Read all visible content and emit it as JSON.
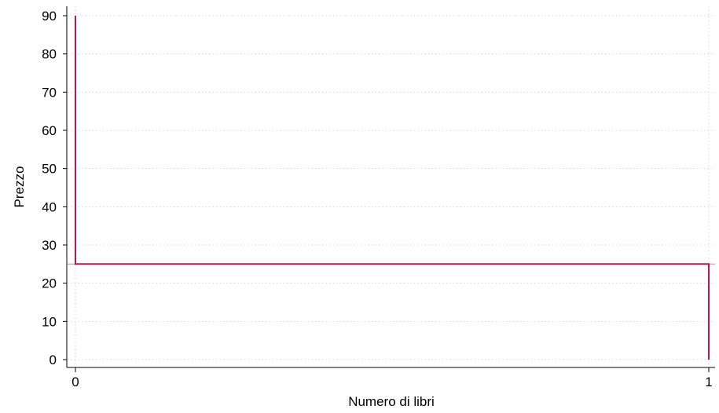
{
  "chart_data": {
    "type": "line",
    "xlabel": "Numero di libri",
    "ylabel": "Prezzo",
    "xlim": [
      0,
      1
    ],
    "ylim": [
      0,
      90
    ],
    "x_ticks": [
      0,
      1
    ],
    "y_ticks": [
      0,
      10,
      20,
      30,
      40,
      50,
      60,
      70,
      80,
      90
    ],
    "grid": true,
    "series": [
      {
        "color": "#c0144a",
        "points": [
          {
            "x": 0,
            "y": 90
          },
          {
            "x": 0,
            "y": 25
          },
          {
            "x": 1,
            "y": 25
          },
          {
            "x": 1,
            "y": 0
          }
        ]
      }
    ],
    "reference_lines": [
      {
        "orientation": "horizontal",
        "y": 25,
        "color": "#b8b8b8"
      }
    ]
  }
}
